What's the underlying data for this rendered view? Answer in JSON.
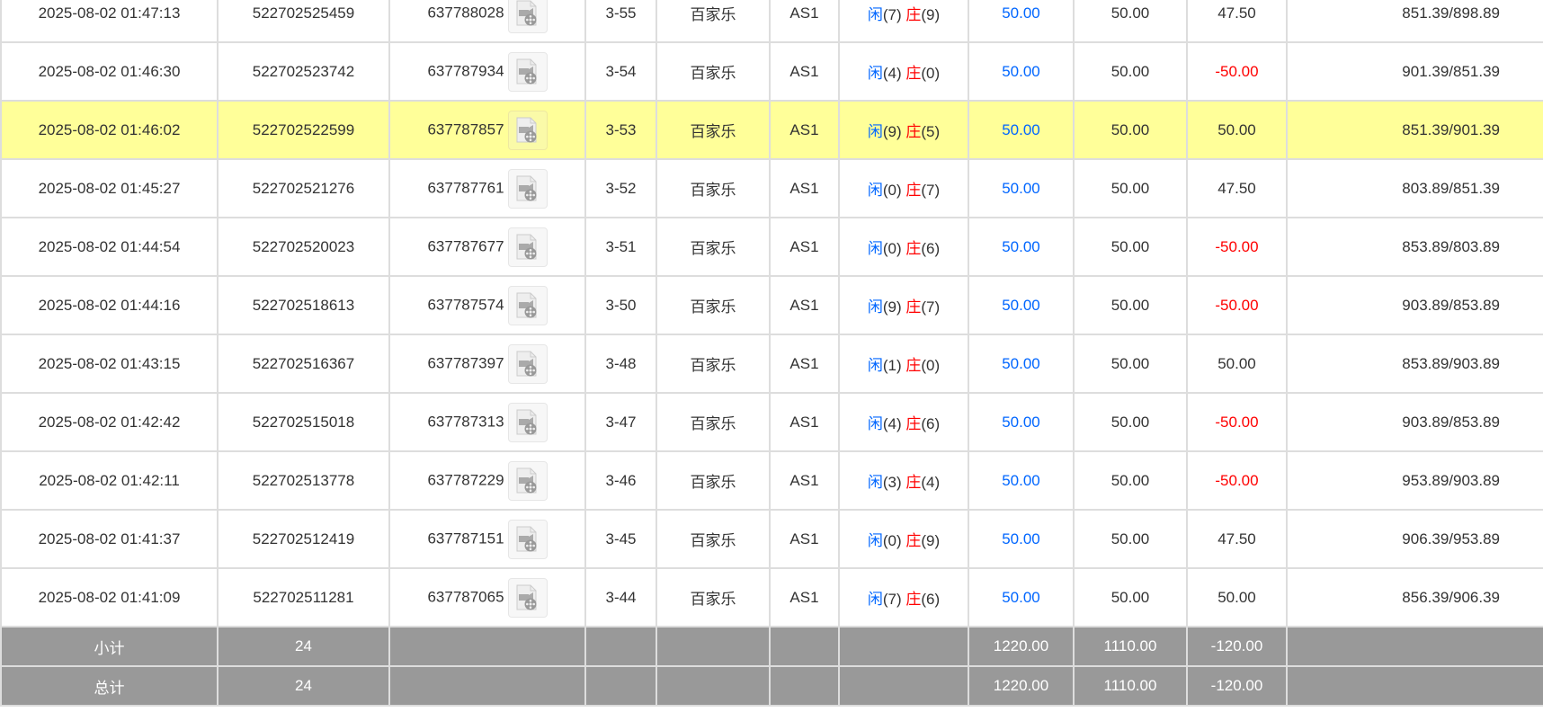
{
  "rows": [
    {
      "time": "2025-08-02 01:47:13",
      "bet_id": "522702525459",
      "round_id": "637788028",
      "shoe": "3-55",
      "game": "百家乐",
      "table": "AS1",
      "player_label": "闲",
      "player": "(7)",
      "banker_label": "庄",
      "banker": "(9)",
      "bet": "50.00",
      "valid": "50.00",
      "win": "47.50",
      "win_negative": false,
      "balance": "851.39/898.89",
      "highlight": false
    },
    {
      "time": "2025-08-02 01:46:30",
      "bet_id": "522702523742",
      "round_id": "637787934",
      "shoe": "3-54",
      "game": "百家乐",
      "table": "AS1",
      "player_label": "闲",
      "player": "(4)",
      "banker_label": "庄",
      "banker": "(0)",
      "bet": "50.00",
      "valid": "50.00",
      "win": "-50.00",
      "win_negative": true,
      "balance": "901.39/851.39",
      "highlight": false
    },
    {
      "time": "2025-08-02 01:46:02",
      "bet_id": "522702522599",
      "round_id": "637787857",
      "shoe": "3-53",
      "game": "百家乐",
      "table": "AS1",
      "player_label": "闲",
      "player": "(9)",
      "banker_label": "庄",
      "banker": "(5)",
      "bet": "50.00",
      "valid": "50.00",
      "win": "50.00",
      "win_negative": false,
      "balance": "851.39/901.39",
      "highlight": true
    },
    {
      "time": "2025-08-02 01:45:27",
      "bet_id": "522702521276",
      "round_id": "637787761",
      "shoe": "3-52",
      "game": "百家乐",
      "table": "AS1",
      "player_label": "闲",
      "player": "(0)",
      "banker_label": "庄",
      "banker": "(7)",
      "bet": "50.00",
      "valid": "50.00",
      "win": "47.50",
      "win_negative": false,
      "balance": "803.89/851.39",
      "highlight": false
    },
    {
      "time": "2025-08-02 01:44:54",
      "bet_id": "522702520023",
      "round_id": "637787677",
      "shoe": "3-51",
      "game": "百家乐",
      "table": "AS1",
      "player_label": "闲",
      "player": "(0)",
      "banker_label": "庄",
      "banker": "(6)",
      "bet": "50.00",
      "valid": "50.00",
      "win": "-50.00",
      "win_negative": true,
      "balance": "853.89/803.89",
      "highlight": false
    },
    {
      "time": "2025-08-02 01:44:16",
      "bet_id": "522702518613",
      "round_id": "637787574",
      "shoe": "3-50",
      "game": "百家乐",
      "table": "AS1",
      "player_label": "闲",
      "player": "(9)",
      "banker_label": "庄",
      "banker": "(7)",
      "bet": "50.00",
      "valid": "50.00",
      "win": "-50.00",
      "win_negative": true,
      "balance": "903.89/853.89",
      "highlight": false
    },
    {
      "time": "2025-08-02 01:43:15",
      "bet_id": "522702516367",
      "round_id": "637787397",
      "shoe": "3-48",
      "game": "百家乐",
      "table": "AS1",
      "player_label": "闲",
      "player": "(1)",
      "banker_label": "庄",
      "banker": "(0)",
      "bet": "50.00",
      "valid": "50.00",
      "win": "50.00",
      "win_negative": false,
      "balance": "853.89/903.89",
      "highlight": false
    },
    {
      "time": "2025-08-02 01:42:42",
      "bet_id": "522702515018",
      "round_id": "637787313",
      "shoe": "3-47",
      "game": "百家乐",
      "table": "AS1",
      "player_label": "闲",
      "player": "(4)",
      "banker_label": "庄",
      "banker": "(6)",
      "bet": "50.00",
      "valid": "50.00",
      "win": "-50.00",
      "win_negative": true,
      "balance": "903.89/853.89",
      "highlight": false
    },
    {
      "time": "2025-08-02 01:42:11",
      "bet_id": "522702513778",
      "round_id": "637787229",
      "shoe": "3-46",
      "game": "百家乐",
      "table": "AS1",
      "player_label": "闲",
      "player": "(3)",
      "banker_label": "庄",
      "banker": "(4)",
      "bet": "50.00",
      "valid": "50.00",
      "win": "-50.00",
      "win_negative": true,
      "balance": "953.89/903.89",
      "highlight": false
    },
    {
      "time": "2025-08-02 01:41:37",
      "bet_id": "522702512419",
      "round_id": "637787151",
      "shoe": "3-45",
      "game": "百家乐",
      "table": "AS1",
      "player_label": "闲",
      "player": "(0)",
      "banker_label": "庄",
      "banker": "(9)",
      "bet": "50.00",
      "valid": "50.00",
      "win": "47.50",
      "win_negative": false,
      "balance": "906.39/953.89",
      "highlight": false
    },
    {
      "time": "2025-08-02 01:41:09",
      "bet_id": "522702511281",
      "round_id": "637787065",
      "shoe": "3-44",
      "game": "百家乐",
      "table": "AS1",
      "player_label": "闲",
      "player": "(7)",
      "banker_label": "庄",
      "banker": "(6)",
      "bet": "50.00",
      "valid": "50.00",
      "win": "50.00",
      "win_negative": false,
      "balance": "856.39/906.39",
      "highlight": false
    }
  ],
  "subtotal": {
    "label": "小计",
    "count": "24",
    "bet": "1220.00",
    "valid": "1110.00",
    "win": "-120.00"
  },
  "total": {
    "label": "总计",
    "count": "24",
    "bet": "1220.00",
    "valid": "1110.00",
    "win": "-120.00"
  },
  "colors": {
    "player": "#0066ff",
    "banker": "#ff0000",
    "highlight": "#ffff99",
    "summary_bg": "#999999"
  },
  "icons": {
    "replay": "video-replay-icon"
  }
}
